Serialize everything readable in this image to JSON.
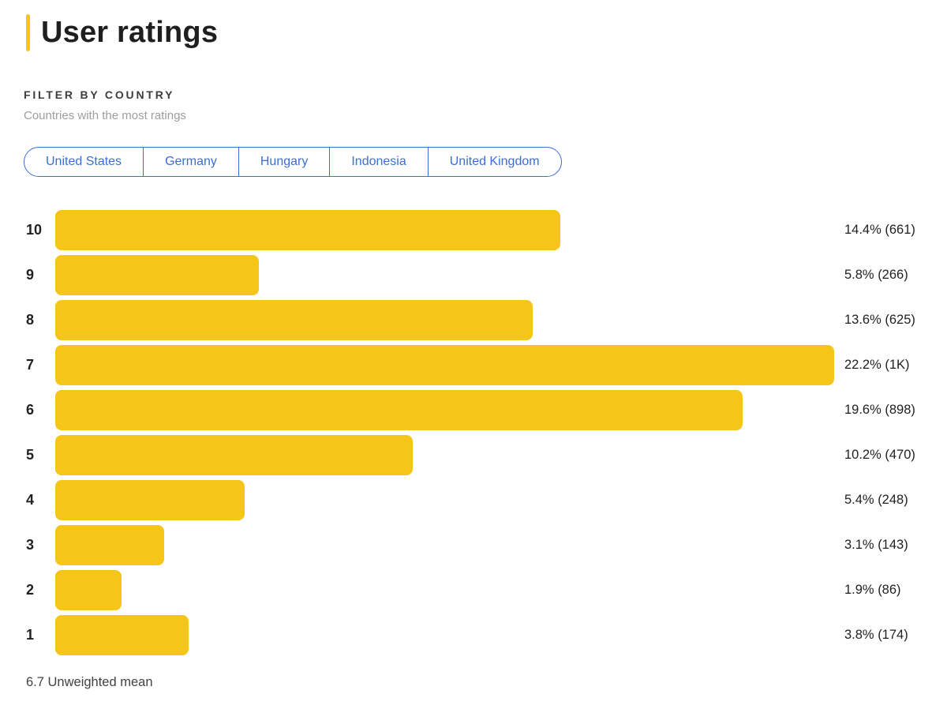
{
  "page": {
    "title": "User ratings",
    "accent_color": "#F5C518"
  },
  "filter": {
    "label": "FILTER BY COUNTRY",
    "sublabel": "Countries with the most ratings",
    "pill_color": "#3C6ED2",
    "countries": [
      {
        "label": "United States"
      },
      {
        "label": "Germany"
      },
      {
        "label": "Hungary"
      },
      {
        "label": "Indonesia"
      },
      {
        "label": "United Kingdom"
      }
    ]
  },
  "chart_data": {
    "type": "bar",
    "orientation": "horizontal",
    "bar_color": "#F5C518",
    "max_pct": 22.2,
    "categories": [
      "10",
      "9",
      "8",
      "7",
      "6",
      "5",
      "4",
      "3",
      "2",
      "1"
    ],
    "values": [
      14.4,
      5.8,
      13.6,
      22.2,
      19.6,
      10.2,
      5.4,
      3.1,
      1.9,
      3.8
    ],
    "rows": [
      {
        "rating": "10",
        "pct": 14.4,
        "count": "661",
        "label": "14.4% (661)"
      },
      {
        "rating": "9",
        "pct": 5.8,
        "count": "266",
        "label": "5.8% (266)"
      },
      {
        "rating": "8",
        "pct": 13.6,
        "count": "625",
        "label": "13.6% (625)"
      },
      {
        "rating": "7",
        "pct": 22.2,
        "count": "1K",
        "label": "22.2% (1K)"
      },
      {
        "rating": "6",
        "pct": 19.6,
        "count": "898",
        "label": "19.6% (898)"
      },
      {
        "rating": "5",
        "pct": 10.2,
        "count": "470",
        "label": "10.2% (470)"
      },
      {
        "rating": "4",
        "pct": 5.4,
        "count": "248",
        "label": "5.4% (248)"
      },
      {
        "rating": "3",
        "pct": 3.1,
        "count": "143",
        "label": "3.1% (143)"
      },
      {
        "rating": "2",
        "pct": 1.9,
        "count": "86",
        "label": "1.9% (86)"
      },
      {
        "rating": "1",
        "pct": 3.8,
        "count": "174",
        "label": "3.8% (174)"
      }
    ]
  },
  "footer": {
    "mean_label": "6.7 Unweighted mean"
  }
}
